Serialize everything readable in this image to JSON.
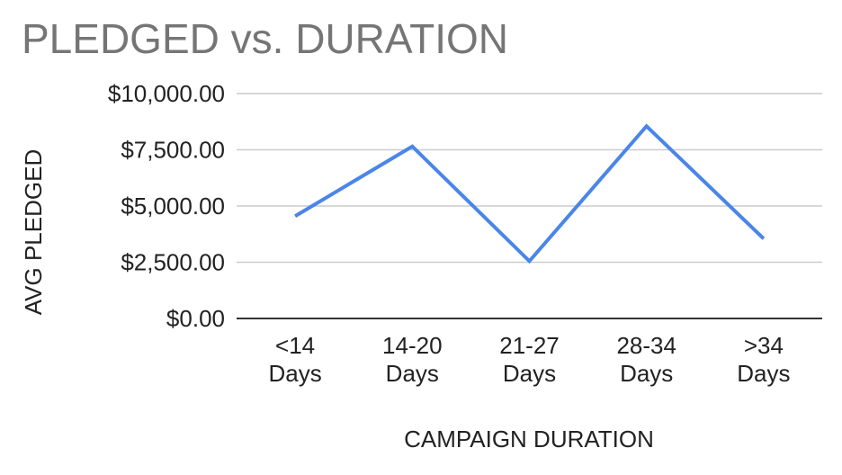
{
  "chart_data": {
    "type": "line",
    "title": "PLEDGED vs. DURATION",
    "xlabel": "CAMPAIGN DURATION",
    "ylabel": "AVG PLEDGED",
    "categories": [
      [
        "<14",
        "Days"
      ],
      [
        "14-20",
        "Days"
      ],
      [
        "21-27",
        "Days"
      ],
      [
        "28-34",
        "Days"
      ],
      [
        ">34",
        "Days"
      ]
    ],
    "series": [
      {
        "values": [
          4550,
          7650,
          2550,
          8550,
          3550
        ],
        "color": "#4a86e8"
      }
    ],
    "ylim": [
      0,
      10000
    ],
    "yticks": [
      0,
      2500,
      5000,
      7500,
      10000
    ],
    "ytick_labels": [
      "$0.00",
      "$2,500.00",
      "$5,000.00",
      "$7,500.00",
      "$10,000.00"
    ],
    "grid": true,
    "legend": "none"
  }
}
